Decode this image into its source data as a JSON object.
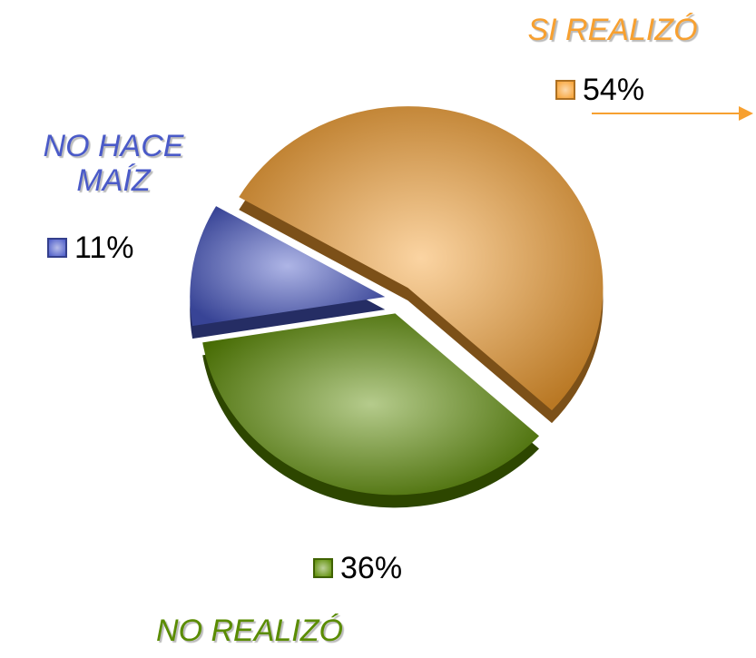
{
  "chart_data": {
    "type": "pie",
    "categories": [
      "SI REALIZÓ",
      "NO REALIZÓ",
      "NO HACE MAÍZ"
    ],
    "values": [
      54,
      36,
      11
    ],
    "value_labels": [
      "54%",
      "36%",
      "11%"
    ],
    "colors": [
      "#f7a030",
      "#5a8c00",
      "#4a5ac8"
    ]
  }
}
